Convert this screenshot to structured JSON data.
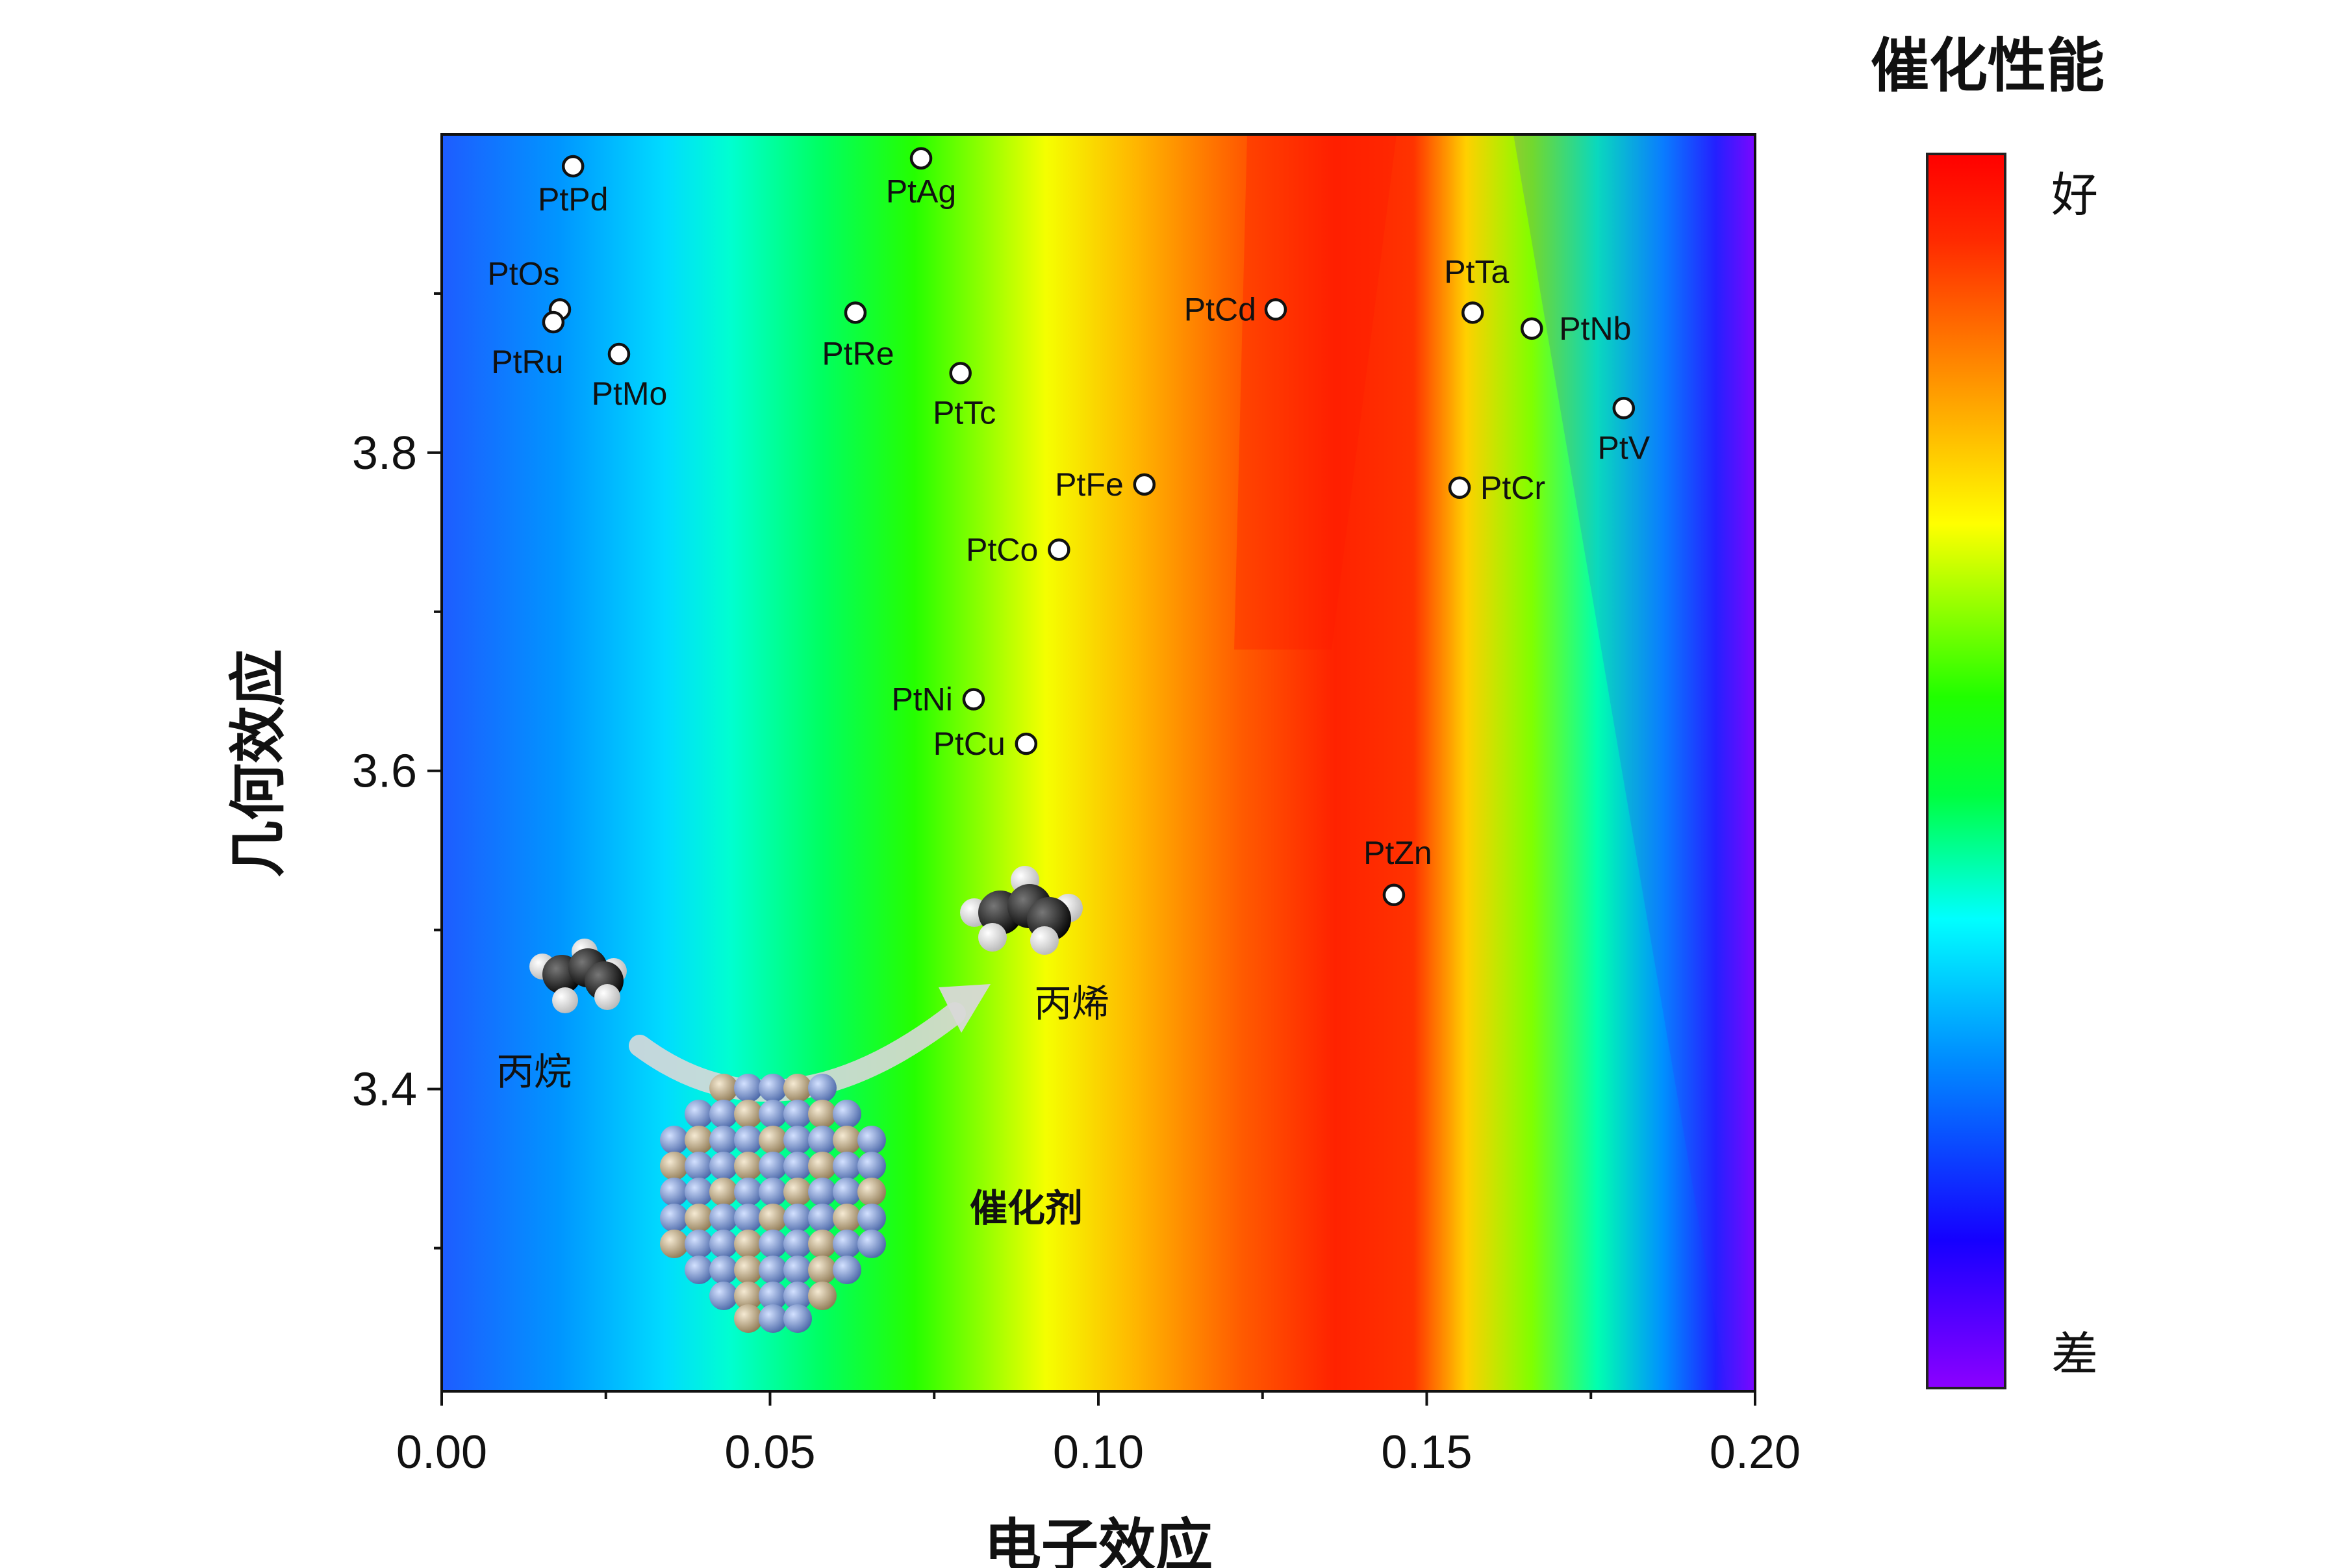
{
  "chart_data": {
    "type": "scatter",
    "title": "",
    "xlabel": "电子效应",
    "ylabel": "几何效应",
    "xlim": [
      0.0,
      0.2
    ],
    "ylim": [
      3.21,
      4.0
    ],
    "xticks": [
      "0.00",
      "0.05",
      "0.10",
      "0.15",
      "0.20"
    ],
    "yticks": [
      "3.4",
      "3.6",
      "3.8"
    ],
    "grid": false,
    "background": "filled contour map of catalytic performance, best near x = 0.13-0.16",
    "points": [
      {
        "label": "PtPd",
        "x": 0.02,
        "y": 3.98
      },
      {
        "label": "PtAg",
        "x": 0.073,
        "y": 3.985
      },
      {
        "label": "PtOs",
        "x": 0.018,
        "y": 3.89
      },
      {
        "label": "PtRu",
        "x": 0.017,
        "y": 3.882
      },
      {
        "label": "PtMo",
        "x": 0.027,
        "y": 3.862
      },
      {
        "label": "PtRe",
        "x": 0.063,
        "y": 3.888
      },
      {
        "label": "PtTc",
        "x": 0.079,
        "y": 3.85
      },
      {
        "label": "PtCd",
        "x": 0.127,
        "y": 3.89
      },
      {
        "label": "PtTa",
        "x": 0.157,
        "y": 3.888
      },
      {
        "label": "PtNb",
        "x": 0.166,
        "y": 3.878
      },
      {
        "label": "PtV",
        "x": 0.18,
        "y": 3.828
      },
      {
        "label": "PtFe",
        "x": 0.107,
        "y": 3.78
      },
      {
        "label": "PtCr",
        "x": 0.155,
        "y": 3.778
      },
      {
        "label": "PtCo",
        "x": 0.094,
        "y": 3.739
      },
      {
        "label": "PtNi",
        "x": 0.081,
        "y": 3.645
      },
      {
        "label": "PtCu",
        "x": 0.089,
        "y": 3.617
      },
      {
        "label": "PtZn",
        "x": 0.145,
        "y": 3.522
      }
    ],
    "colorbar": {
      "title": "催化性能",
      "top_label": "好",
      "bottom_label": "差",
      "colors": [
        "#8c00ff",
        "#1500ff",
        "#0090ff",
        "#00ffff",
        "#00ff40",
        "#20ff00",
        "#ffff00",
        "#ff9000",
        "#ff2a00",
        "#ff0000"
      ]
    },
    "annotations": {
      "propane": "丙烷",
      "propene": "丙烯",
      "catalyst": "催化剂"
    }
  }
}
